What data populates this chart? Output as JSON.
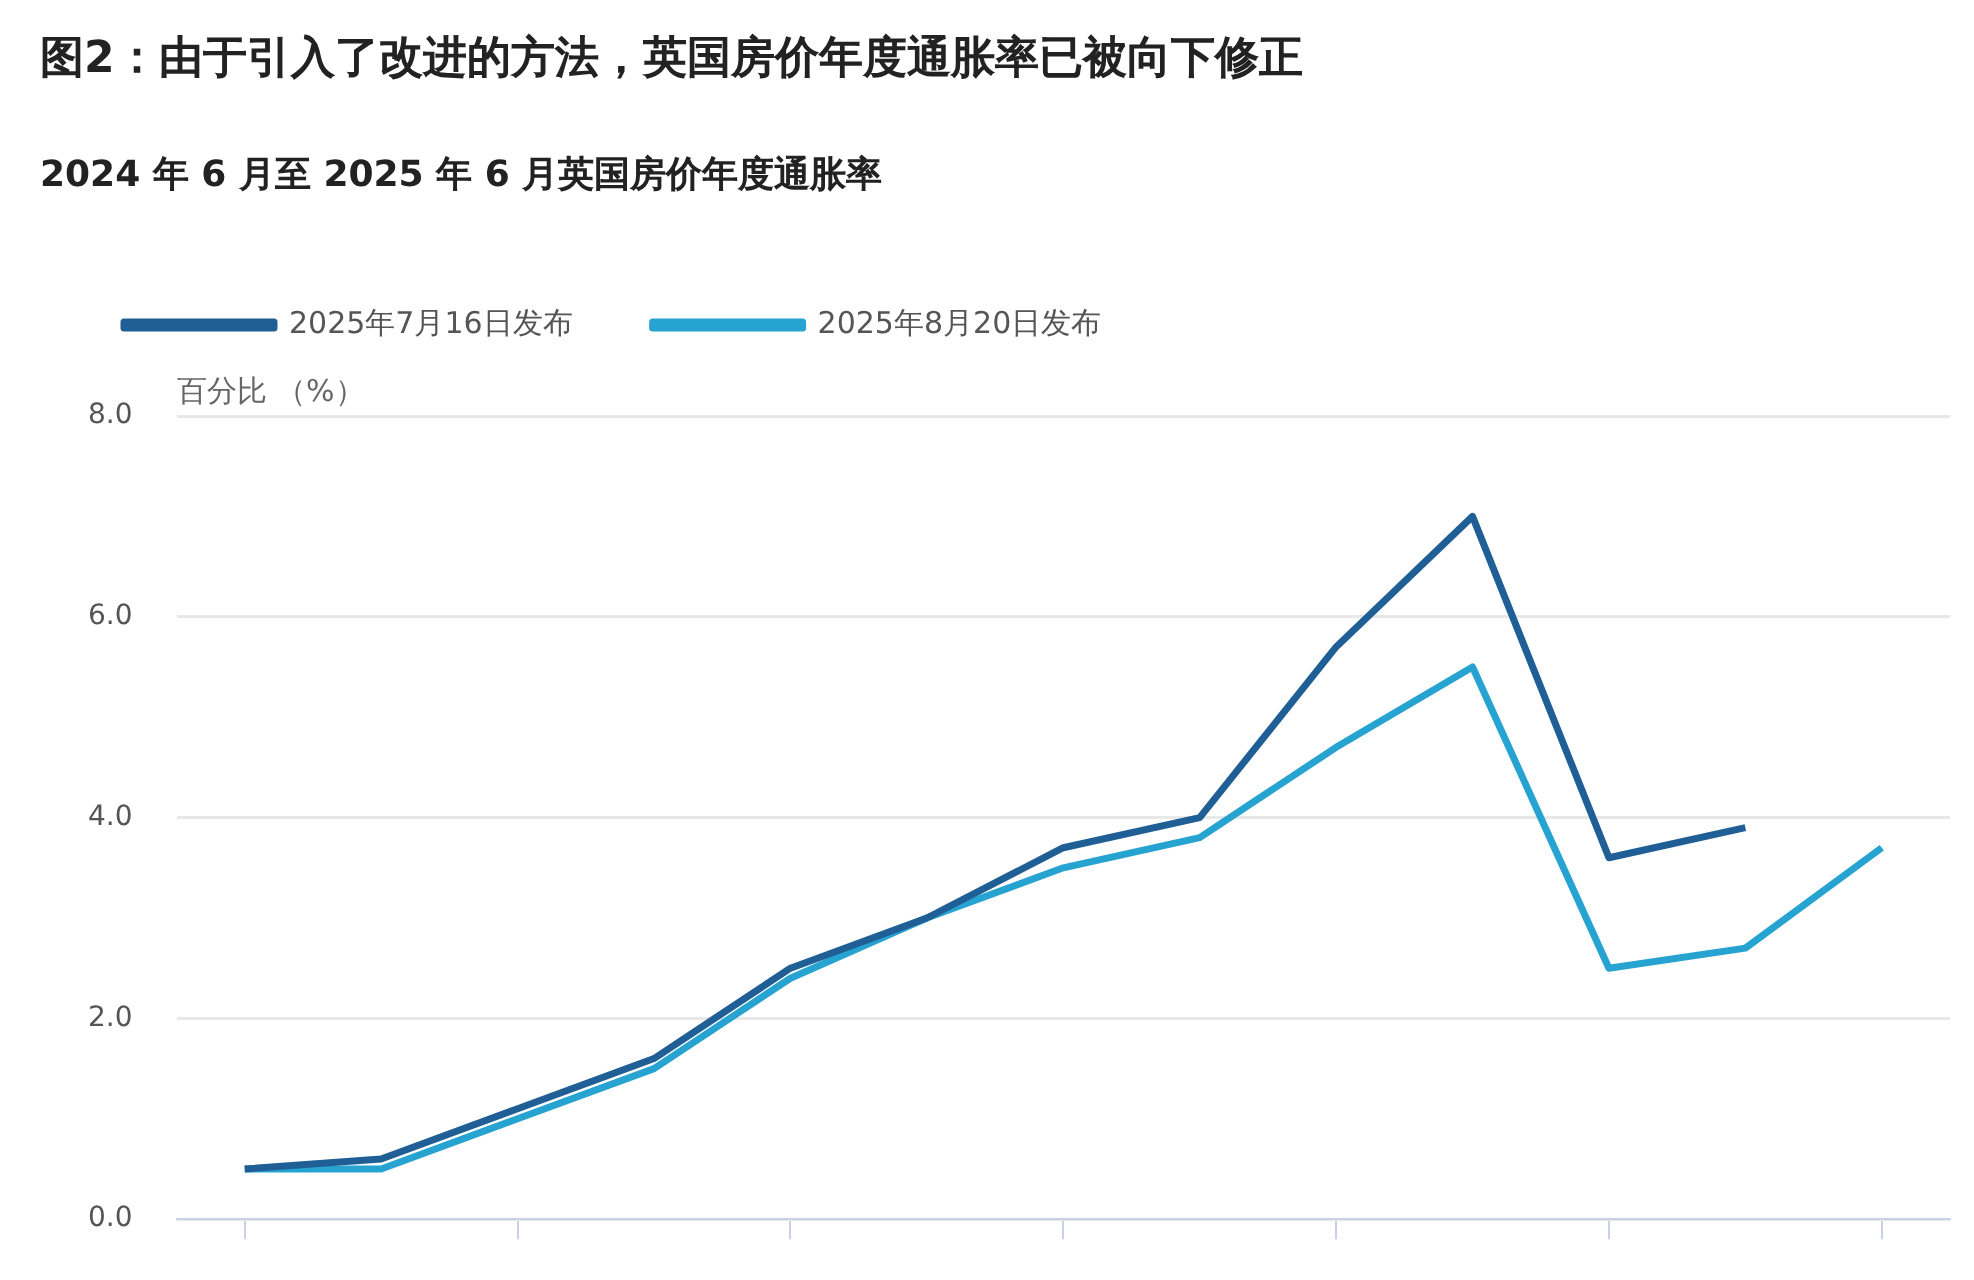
{
  "chart_data": {
    "type": "line",
    "title": "图2：由于引入了改进的方法，英国房价年度通胀率已被向下修正",
    "subtitle": "2024 年 6 月至 2025 年 6 月英国房价年度通胀率",
    "ylabel": "百分比 （%）",
    "categories": [
      null,
      null,
      null,
      null,
      null,
      null,
      null,
      null,
      null,
      null,
      null,
      null,
      null
    ],
    "series": [
      {
        "name": "2025年7月16日发布",
        "color": "#1f5f96",
        "values": [
          0.5,
          0.6,
          1.1,
          1.6,
          2.5,
          3.0,
          3.7,
          4.0,
          5.7,
          7.0,
          3.6,
          3.9,
          null
        ]
      },
      {
        "name": "2025年8月20日发布",
        "color": "#26a3d0",
        "values": [
          0.5,
          0.5,
          1.0,
          1.5,
          2.4,
          3.0,
          3.5,
          3.8,
          4.7,
          5.5,
          2.5,
          2.7,
          3.7
        ]
      }
    ],
    "ylim": [
      0,
      8
    ],
    "yticks": [
      {
        "value": 0,
        "label": "0.0"
      },
      {
        "value": 2,
        "label": "2.0"
      },
      {
        "value": 4,
        "label": "4.0"
      },
      {
        "value": 6,
        "label": "6.0"
      },
      {
        "value": 8,
        "label": "8.0"
      }
    ],
    "grid": "y",
    "legend": "top left",
    "tick_labels": "y",
    "marker": "none",
    "line_style": "solid"
  }
}
